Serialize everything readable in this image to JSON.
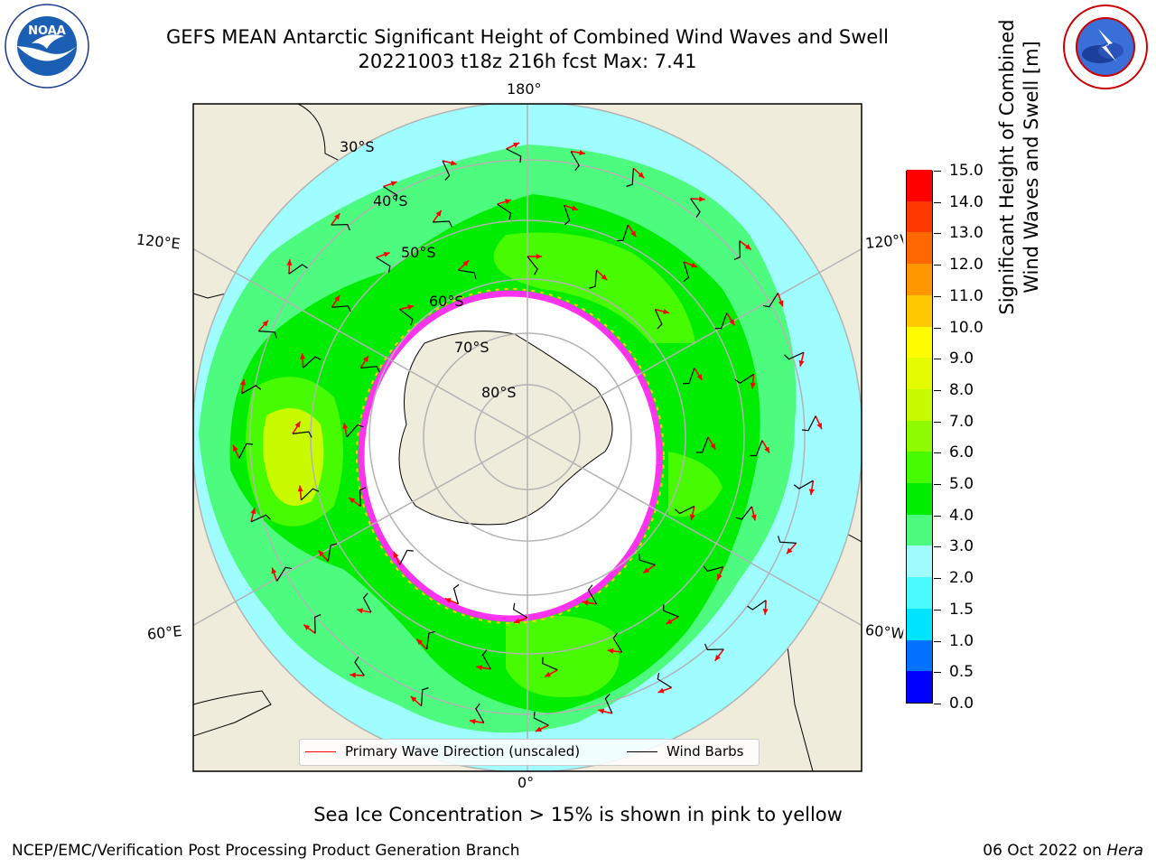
{
  "header": {
    "title_line1": "GEFS MEAN Antarctic Significant Height of Combined Wind Waves and Swell",
    "title_line2": "20221003 t18z 216h fcst   Max: 7.41"
  },
  "logos": {
    "left": {
      "text": "NOAA",
      "ring_text": "NATIONAL OCEANIC AND ATMOSPHERIC ADMINISTRATION · U.S. DEPARTMENT OF COMMERCE"
    },
    "right": {
      "ring_text": "NATIONAL WEATHER SERVICE"
    }
  },
  "map": {
    "longitude_labels": {
      "top": "180°",
      "bottom": "0°",
      "upper_left": "120°E",
      "lower_left": "60°E",
      "upper_right": "120°W",
      "lower_right": "60°W"
    },
    "latitude_labels": [
      "30°S",
      "40°S",
      "50°S",
      "60°S",
      "70°S",
      "80°S"
    ],
    "colors": {
      "land": "#efecdc",
      "ocean_low": "#9ffcff",
      "ocean_mid": "#4dfc7f",
      "ocean_high": "#00ec00",
      "ocean_peak": "#74fb00",
      "ice_edge": "#ff33ee",
      "arrow": "#ff0000",
      "barb": "#000000",
      "grid": "#b3b3b3"
    }
  },
  "legend": {
    "items": [
      {
        "label": "Primary Wave Direction (unscaled)",
        "color": "#ff0000"
      },
      {
        "label": "Wind Barbs",
        "color": "#000000"
      }
    ]
  },
  "colorbar": {
    "title_line1": "Significant Height of Combined",
    "title_line2": "Wind Waves and Swell [m]",
    "levels": [
      "0.0",
      "0.5",
      "1.0",
      "1.5",
      "2.0",
      "3.0",
      "4.0",
      "5.0",
      "6.0",
      "7.0",
      "8.0",
      "9.0",
      "10.0",
      "11.0",
      "12.0",
      "13.0",
      "14.0",
      "15.0"
    ],
    "colors": [
      "#0000ff",
      "#0072ff",
      "#00e5ff",
      "#49fbff",
      "#9ffcff",
      "#4dfc7f",
      "#00ec00",
      "#47fb00",
      "#8ffb00",
      "#c8fb00",
      "#e4fb00",
      "#fffb00",
      "#ffc800",
      "#ff9800",
      "#ff6800",
      "#ff3700",
      "#ff0000"
    ]
  },
  "footnote": "Sea Ice Concentration > 15% is shown in pink to yellow",
  "footer": {
    "left": "NCEP/EMC/Verification Post Processing Product Generation Branch",
    "right_prefix": "06 Oct 2022 on",
    "right_host": "Hera"
  }
}
